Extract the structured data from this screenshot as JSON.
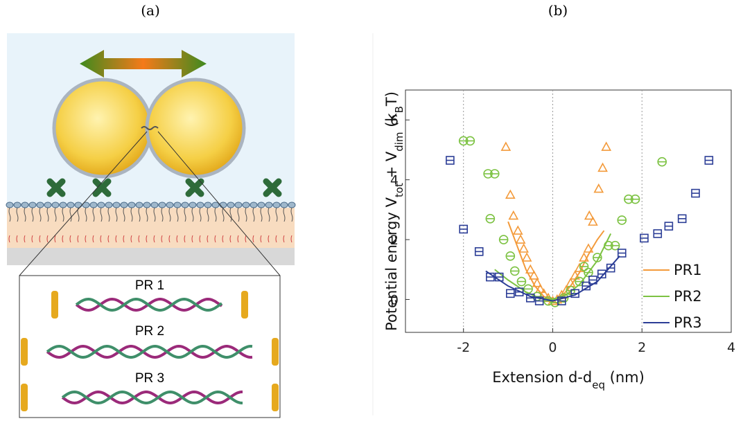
{
  "panel_labels": [
    "(a)",
    "(b)"
  ],
  "diagram": {
    "labels": [
      "PR 1",
      "PR 2",
      "PR 3"
    ]
  },
  "chart_data": {
    "type": "scatter",
    "xlabel": [
      "Extension d-d",
      "eq",
      " (nm)"
    ],
    "ylabel": [
      "Potential energy V",
      "tot",
      " + V",
      "dim",
      " (k",
      "B",
      "T)"
    ],
    "xlim": [
      -3.3,
      4
    ],
    "ylim": [
      -1.1,
      7
    ],
    "xticks": [
      -2,
      0,
      2,
      4
    ],
    "yticks": [
      0,
      2,
      4,
      6
    ],
    "grid": "x",
    "legend": "lower right",
    "series": [
      {
        "name": "PR1",
        "color": "#f39a3a",
        "marker": "triangle",
        "x": [
          -1.05,
          -0.95,
          -0.88,
          -0.78,
          -0.72,
          -0.65,
          -0.58,
          -0.5,
          -0.42,
          -0.35,
          -0.28,
          -0.2,
          -0.1,
          0,
          0.1,
          0.2,
          0.3,
          0.4,
          0.5,
          0.6,
          0.7,
          0.8,
          0.82,
          0.9,
          1.03,
          1.12,
          1.2
        ],
        "values": [
          5.1,
          3.5,
          2.8,
          2.3,
          2.0,
          1.7,
          1.4,
          1.0,
          0.8,
          0.55,
          0.35,
          0.2,
          0.05,
          -0.05,
          0.0,
          0.15,
          0.3,
          0.55,
          0.8,
          1.05,
          1.4,
          1.7,
          2.8,
          2.6,
          3.7,
          4.4,
          5.1
        ],
        "fit_x": [
          -1.0,
          -0.8,
          -0.6,
          -0.4,
          -0.2,
          0,
          0.2,
          0.4,
          0.6,
          0.8,
          1.0,
          1.15
        ],
        "fit_values": [
          2.6,
          1.8,
          1.0,
          0.45,
          0.1,
          0,
          0.1,
          0.45,
          0.9,
          1.5,
          2.0,
          2.3
        ]
      },
      {
        "name": "PR2",
        "color": "#7cc242",
        "marker": "circle",
        "x": [
          -2.0,
          -1.85,
          -1.45,
          -1.3,
          -1.4,
          -1.1,
          -0.95,
          -0.85,
          -0.7,
          -0.55,
          -0.35,
          -0.1,
          0.05,
          0.25,
          0.4,
          0.6,
          0.7,
          0.8,
          1.0,
          1.25,
          1.4,
          1.55,
          1.7,
          1.85,
          2.45
        ],
        "values": [
          5.3,
          5.3,
          4.2,
          4.2,
          2.7,
          2.0,
          1.45,
          0.95,
          0.6,
          0.35,
          0.1,
          -0.05,
          -0.1,
          0.05,
          0.3,
          0.6,
          1.1,
          0.9,
          1.4,
          1.8,
          1.8,
          2.65,
          3.35,
          3.35,
          4.6
        ],
        "fit_x": [
          -1.3,
          -1.0,
          -0.6,
          -0.3,
          0,
          0.3,
          0.6,
          1.0,
          1.3
        ],
        "fit_values": [
          1.0,
          0.65,
          0.25,
          0.05,
          0,
          0.15,
          0.5,
          1.3,
          2.2
        ]
      },
      {
        "name": "PR3",
        "color": "#2b3d96",
        "marker": "square",
        "x": [
          -2.3,
          -2.0,
          -1.65,
          -1.4,
          -1.2,
          -0.95,
          -0.75,
          -0.5,
          -0.3,
          0.2,
          0.5,
          0.75,
          0.9,
          1.1,
          1.3,
          1.55,
          2.05,
          2.35,
          2.6,
          2.9,
          3.2,
          3.5
        ],
        "values": [
          4.65,
          2.35,
          1.6,
          0.75,
          0.75,
          0.2,
          0.25,
          0.05,
          -0.05,
          -0.05,
          0.2,
          0.45,
          0.65,
          0.85,
          1.05,
          1.55,
          2.05,
          2.2,
          2.45,
          2.7,
          3.55,
          4.65
        ],
        "fit_x": [
          -1.5,
          -1.0,
          -0.5,
          0,
          0.5,
          1.0,
          1.5
        ],
        "fit_values": [
          0.95,
          0.45,
          0.1,
          -0.05,
          0.15,
          0.6,
          1.45
        ]
      }
    ]
  }
}
